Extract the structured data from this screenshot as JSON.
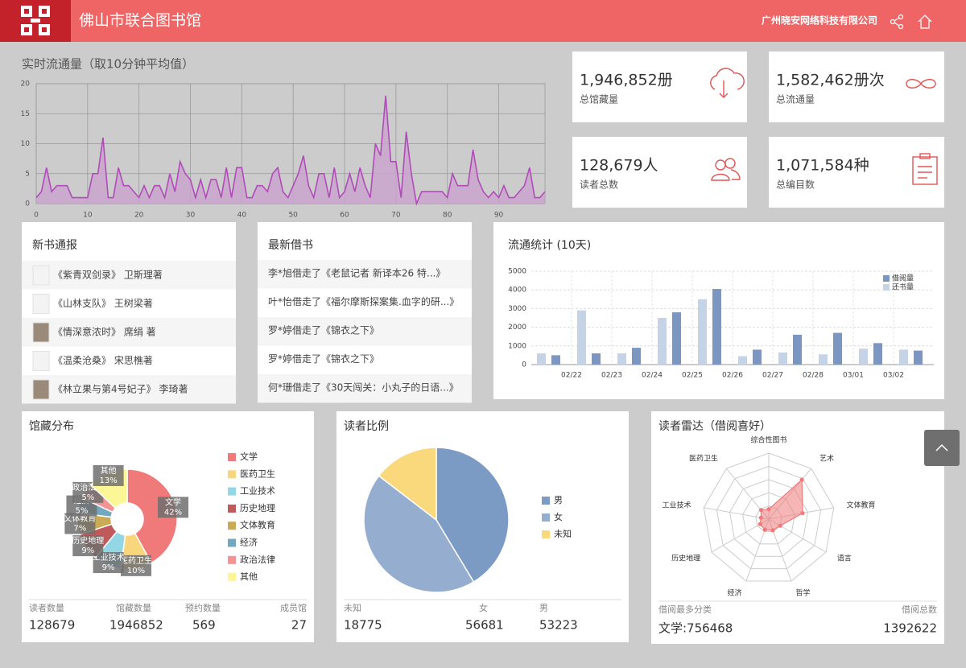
{
  "header": {
    "title": "佛山市联合图书馆",
    "company": "广州晓安网络科技有限公司"
  },
  "stats": [
    {
      "value": "1,946,852册",
      "label": "总馆藏量"
    },
    {
      "value": "1,582,462册次",
      "label": "总流通量"
    },
    {
      "value": "128,679人",
      "label": "读者总数"
    },
    {
      "value": "1,071,584种",
      "label": "总编目数"
    }
  ],
  "new_books": {
    "title": "新书通报",
    "items": [
      "《紫青双剑录》 卫斯理著",
      "《山林支队》 王树梁著",
      "《情深意浓时》 席绢 著",
      "《温柔沧桑》 宋思樵著",
      "《林立果与第4号妃子》 李琦著"
    ]
  },
  "latest_loans": {
    "title": "最新借书",
    "items": [
      "李*旭借走了《老鼠记者 新译本26 特...》",
      "叶*怡借走了《福尔摩斯探案集.血字的研...》",
      "罗*婷借走了《锦衣之下》",
      "罗*婷借走了《锦衣之下》",
      "何*珊借走了《30天闯关：小丸子的日语...》"
    ]
  },
  "collection_summary": [
    {
      "label": "读者数量",
      "value": 128679
    },
    {
      "label": "馆藏数量",
      "value": 1946852
    },
    {
      "label": "预约数量",
      "value": 569
    },
    {
      "label": "成员馆",
      "value": 27
    }
  ],
  "radar_summary": {
    "top_label": "借阅最多分类",
    "top_value": "文学:756468",
    "total_label": "借阅总数",
    "total": 1392622
  },
  "chart_data": [
    {
      "type": "line",
      "title": "实时流通量（取10分钟平均值）",
      "color": "#b04cb8",
      "fill": "#c9a3cc",
      "x": [
        0,
        1,
        2,
        3,
        4,
        5,
        6,
        7,
        8,
        9,
        10,
        11,
        12,
        13,
        14,
        15,
        16,
        17,
        18,
        19,
        20,
        21,
        22,
        23,
        24,
        25,
        26,
        27,
        28,
        29,
        30,
        31,
        32,
        33,
        34,
        35,
        36,
        37,
        38,
        39,
        40,
        41,
        42,
        43,
        44,
        45,
        46,
        47,
        48,
        49,
        50,
        51,
        52,
        53,
        54,
        55,
        56,
        57,
        58,
        59,
        60,
        61,
        62,
        63,
        64,
        65,
        66,
        67,
        68,
        69,
        70,
        71,
        72,
        73,
        74,
        75,
        76,
        77,
        78,
        79,
        80,
        81,
        82,
        83,
        84,
        85,
        86,
        87,
        88,
        89,
        90,
        91,
        92,
        93,
        94,
        95,
        96,
        97,
        98,
        99
      ],
      "values": [
        1,
        2,
        6,
        2,
        3,
        3,
        3,
        1,
        1,
        1,
        1,
        5,
        5,
        11,
        1,
        1,
        6,
        3,
        3,
        2,
        1,
        3,
        1,
        3,
        3,
        1,
        5,
        2,
        7,
        5,
        4,
        1,
        4,
        1,
        4,
        4,
        1,
        6,
        1,
        6,
        6,
        1,
        1,
        3,
        3,
        2,
        5,
        6,
        2,
        1,
        3,
        5,
        8,
        3,
        1,
        5,
        5,
        1,
        6,
        1,
        2,
        5,
        2,
        6,
        3,
        1,
        10,
        8,
        18,
        7,
        7,
        1,
        12,
        5,
        0,
        2,
        2,
        2,
        2,
        2,
        1,
        5,
        3,
        3,
        3,
        9,
        4,
        2,
        1,
        2,
        1,
        3,
        1,
        1,
        2,
        3,
        6,
        1,
        1,
        2
      ],
      "xlim": [
        0,
        99
      ],
      "xticks": [
        0,
        10,
        20,
        30,
        40,
        50,
        60,
        70,
        80,
        90
      ],
      "ylim": [
        0,
        20
      ],
      "yticks": [
        0,
        5,
        10,
        15,
        20
      ],
      "grid": true
    },
    {
      "type": "bar",
      "title": "流通统计 (10天)",
      "categories": [
        "02/22",
        "02/23",
        "02/24",
        "02/25",
        "02/26",
        "02/27",
        "02/28",
        "03/01",
        "03/02",
        null
      ],
      "series": [
        {
          "name": "借阅量",
          "color": "#7b96c0",
          "values": [
            500,
            600,
            900,
            2800,
            4050,
            800,
            1600,
            1700,
            1150,
            750
          ]
        },
        {
          "name": "还书量",
          "color": "#c5d3e6",
          "values": [
            600,
            2900,
            600,
            2500,
            3500,
            450,
            650,
            550,
            850,
            800
          ]
        }
      ],
      "ylim": [
        0,
        5000
      ],
      "yticks": [
        0,
        1000,
        2000,
        3000,
        4000,
        5000
      ],
      "grid": true,
      "legend": "top-right"
    },
    {
      "type": "donut",
      "title": "馆藏分布",
      "categories": [
        "文学",
        "医药卫生",
        "工业技术",
        "历史地理",
        "文体教育",
        "经济",
        "政治法律",
        "其他"
      ],
      "values": [
        42,
        10,
        9,
        9,
        7,
        5,
        5,
        13
      ],
      "value_labels": [
        "42%",
        "10%",
        "9%",
        "9%",
        "7%",
        "5%",
        "5%",
        "13%"
      ],
      "colors": [
        "#f07a7a",
        "#f8d77c",
        "#93d6e6",
        "#c05a5a",
        "#c9aa55",
        "#72a9c0",
        "#f29494",
        "#fbf796"
      ]
    },
    {
      "type": "pie",
      "title": "读者比例",
      "categories": [
        "男",
        "女",
        "未知"
      ],
      "values": [
        53223,
        56681,
        18775
      ],
      "colors": [
        "#7b9bc4",
        "#95aed0",
        "#f9d97b"
      ]
    },
    {
      "type": "radar",
      "title": "读者雷达（借阅喜好）",
      "categories": [
        "综合性图书",
        "艺术",
        "文体教育",
        "语言",
        "哲学",
        "经济",
        "历史地理",
        "工业技术",
        "医药卫生"
      ],
      "values": [
        15,
        78,
        52,
        20,
        18,
        17,
        15,
        12,
        18
      ],
      "rlim": [
        0,
        100
      ],
      "rticks": [
        20,
        40,
        60,
        80,
        100
      ],
      "color": "#f07a7a"
    }
  ]
}
